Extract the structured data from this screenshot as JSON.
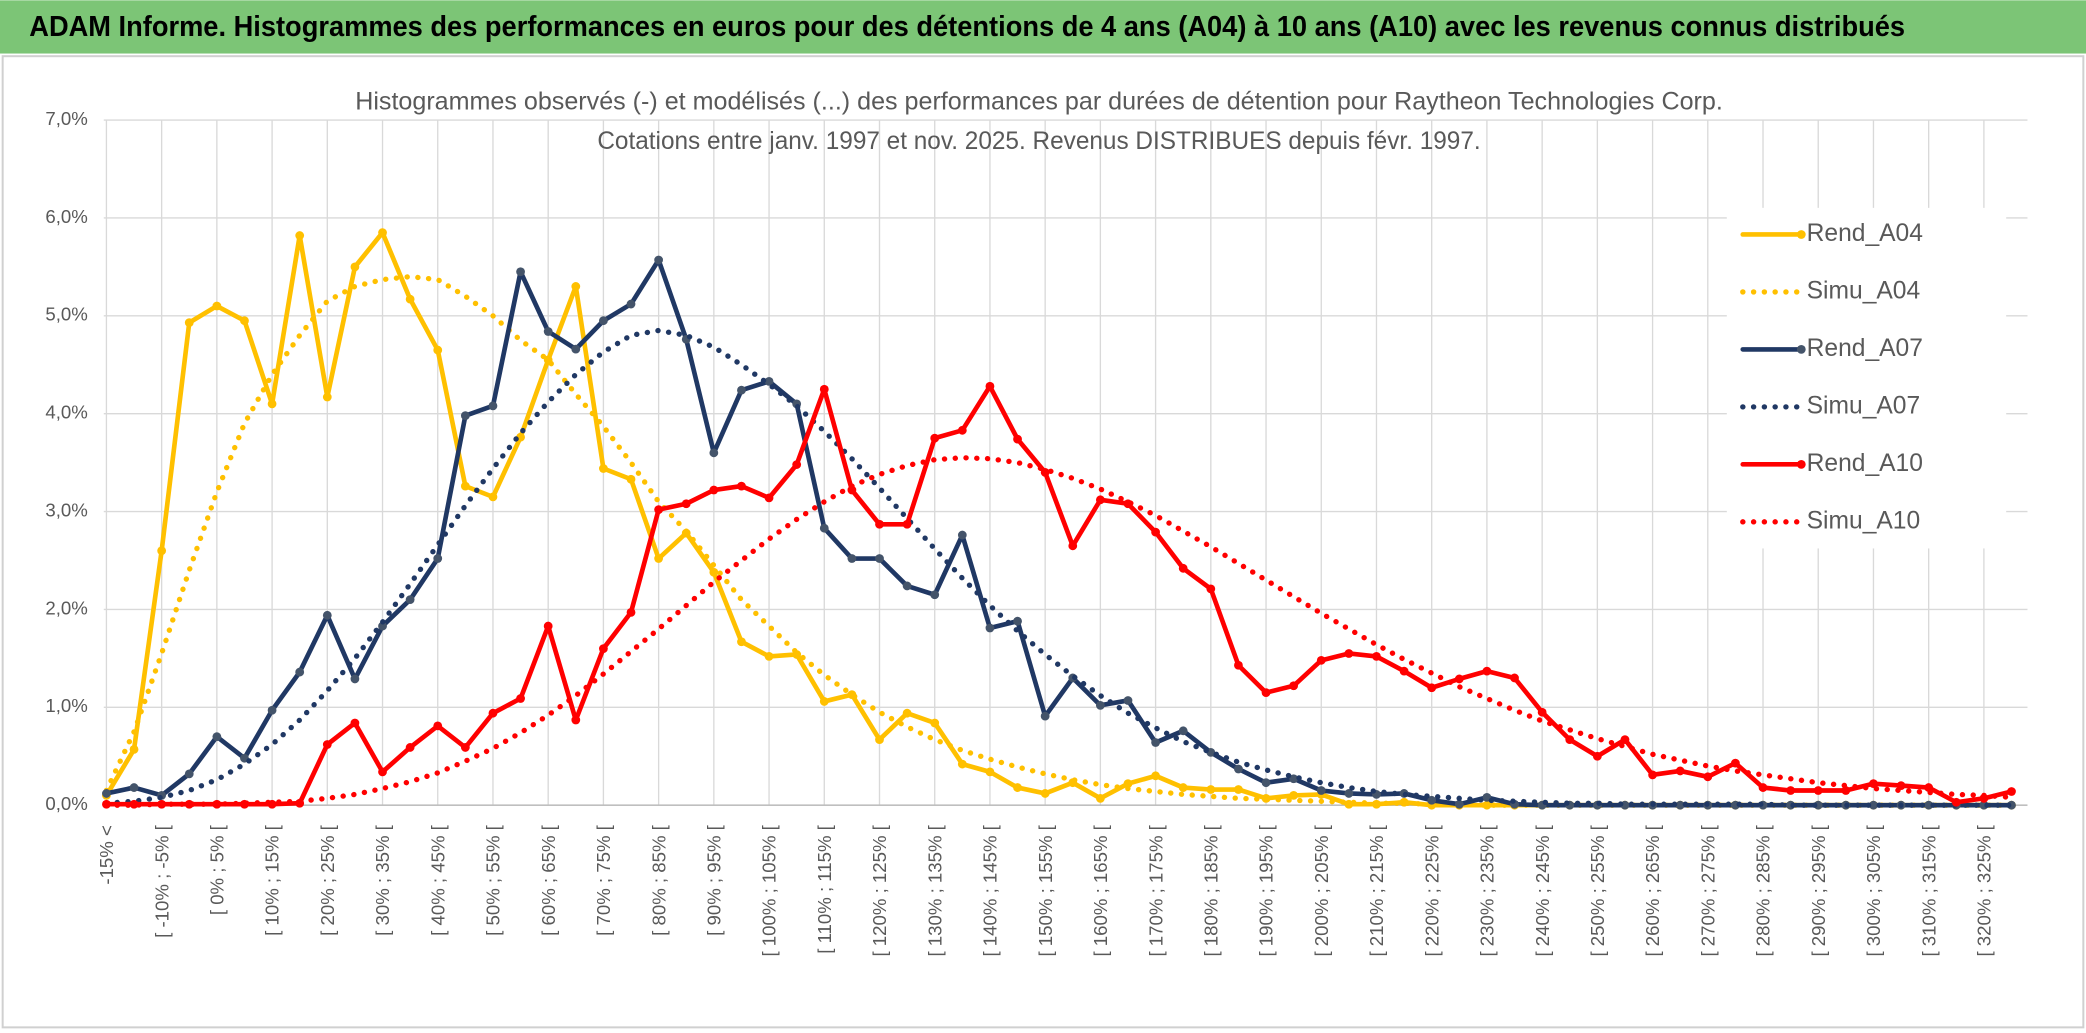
{
  "header": {
    "title": "ADAM Informe. Histogrammes des performances en euros pour des détentions de 4 ans (A04) à 10 ans (A10) avec les revenus connus distribués"
  },
  "chart_data": {
    "type": "line",
    "title": "Histogrammes observés (-) et modélisés (...) des performances par durées de détention pour Raytheon Technologies Corp.",
    "subtitle": "Cotations entre janv. 1997 et nov. 2025. Revenus DISTRIBUES depuis févr. 1997.",
    "categories": [
      "-15% <",
      null,
      "[ -10% ; -5% [",
      null,
      "[ 0% ; 5% [",
      null,
      "[ 10% ; 15% [",
      null,
      "[ 20% ; 25% [",
      null,
      "[ 30% ; 35% [",
      null,
      "[ 40% ; 45% [",
      null,
      "[ 50% ; 55% [",
      null,
      "[ 60% ; 65% [",
      null,
      "[ 70% ; 75% [",
      null,
      "[ 80% ; 85% [",
      null,
      "[ 90% ; 95% [",
      null,
      "[ 100% ; 105% [",
      null,
      "[ 110% ; 115% [",
      null,
      "[ 120% ; 125% [",
      null,
      "[ 130% ; 135% [",
      null,
      "[ 140% ; 145% [",
      null,
      "[ 150% ; 155% [",
      null,
      "[ 160% ; 165% [",
      null,
      "[ 170% ; 175% [",
      null,
      "[ 180% ; 185% [",
      null,
      "[ 190% ; 195% [",
      null,
      "[ 200% ; 205% [",
      null,
      "[ 210% ; 215% [",
      null,
      "[ 220% ; 225% [",
      null,
      "[ 230% ; 235% [",
      null,
      "[ 240% ; 245% [",
      null,
      "[ 250% ; 255% [",
      null,
      "[ 260% ; 265% [",
      null,
      "[ 270% ; 275% [",
      null,
      "[ 280% ; 285% [",
      null,
      "[ 290% ; 295% [",
      null,
      "[ 300% ; 305% [",
      null,
      "[ 310% ; 315% [",
      null,
      "[ 320% ; 325% [",
      null
    ],
    "ylim": [
      0,
      7
    ],
    "yticks": [
      {
        "value": 0,
        "label": "0,0%"
      },
      {
        "value": 1,
        "label": "1,0%"
      },
      {
        "value": 2,
        "label": "2,0%"
      },
      {
        "value": 3,
        "label": "3,0%"
      },
      {
        "value": 4,
        "label": "4,0%"
      },
      {
        "value": 5,
        "label": "5,0%"
      },
      {
        "value": 6,
        "label": "6,0%"
      },
      {
        "value": 7,
        "label": "7,0%"
      }
    ],
    "grid": true,
    "legend": "right",
    "series": [
      {
        "name": "Rend_A04",
        "color": "#ffc000",
        "style": "solid",
        "markers": true,
        "values": [
          0.1,
          0.57,
          2.6,
          4.93,
          5.1,
          4.95,
          4.1,
          5.82,
          4.17,
          5.5,
          5.85,
          5.17,
          4.65,
          3.26,
          3.15,
          3.76,
          4.55,
          5.3,
          3.44,
          3.33,
          2.52,
          2.78,
          2.38,
          1.67,
          1.52,
          1.54,
          1.06,
          1.13,
          0.67,
          0.94,
          0.84,
          0.42,
          0.34,
          0.18,
          0.12,
          0.23,
          0.07,
          0.22,
          0.3,
          0.18,
          0.16,
          0.16,
          0.07,
          0.1,
          0.11,
          0.01,
          0.01,
          0.03,
          0,
          0,
          0,
          0,
          0,
          0,
          0,
          0,
          0,
          0,
          0,
          0,
          0,
          0,
          0,
          0,
          0,
          0,
          0,
          0,
          0,
          0
        ]
      },
      {
        "name": "Simu_A04",
        "color": "#ffc000",
        "style": "dotted",
        "markers": false,
        "values": [
          0.15,
          0.75,
          1.55,
          2.4,
          3.2,
          3.9,
          4.4,
          4.8,
          5.15,
          5.3,
          5.37,
          5.4,
          5.37,
          5.2,
          5.0,
          4.75,
          4.55,
          4.2,
          3.87,
          3.5,
          3.1,
          2.8,
          2.45,
          2.1,
          1.83,
          1.56,
          1.33,
          1.13,
          0.95,
          0.8,
          0.67,
          0.56,
          0.47,
          0.39,
          0.32,
          0.26,
          0.21,
          0.17,
          0.14,
          0.11,
          0.09,
          0.07,
          0.06,
          0.05,
          0.04,
          0.03,
          0.02,
          0.02,
          0.01,
          0.01,
          0,
          0,
          0,
          0,
          0,
          0,
          0,
          0,
          0,
          0,
          0,
          0,
          0,
          0,
          0,
          0,
          0,
          0,
          0,
          0
        ]
      },
      {
        "name": "Rend_A07",
        "color": "#203864",
        "style": "solid",
        "markers": true,
        "values": [
          0.12,
          0.18,
          0.1,
          0.32,
          0.7,
          0.48,
          0.97,
          1.36,
          1.94,
          1.29,
          1.83,
          2.1,
          2.52,
          3.98,
          4.08,
          5.45,
          4.84,
          4.66,
          4.95,
          5.12,
          5.57,
          4.76,
          3.6,
          4.24,
          4.33,
          4.1,
          2.83,
          2.52,
          2.52,
          2.24,
          2.15,
          2.76,
          1.81,
          1.88,
          0.91,
          1.3,
          1.02,
          1.07,
          0.64,
          0.76,
          0.54,
          0.37,
          0.23,
          0.27,
          0.15,
          0.12,
          0.11,
          0.12,
          0.05,
          0.01,
          0.08,
          0.01,
          0,
          0,
          0,
          0,
          0,
          0,
          0,
          0,
          0,
          0,
          0,
          0,
          0,
          0,
          0,
          0,
          0,
          0
        ]
      },
      {
        "name": "Simu_A07",
        "color": "#203864",
        "style": "dotted",
        "markers": false,
        "values": [
          0.02,
          0.04,
          0.08,
          0.15,
          0.26,
          0.42,
          0.62,
          0.87,
          1.17,
          1.5,
          1.87,
          2.26,
          2.66,
          3.06,
          3.44,
          3.8,
          4.12,
          4.4,
          4.63,
          4.8,
          4.85,
          4.8,
          4.68,
          4.5,
          4.3,
          4.08,
          3.82,
          3.54,
          3.24,
          2.93,
          2.62,
          2.32,
          2.04,
          1.78,
          1.54,
          1.32,
          1.12,
          0.94,
          0.79,
          0.65,
          0.54,
          0.44,
          0.36,
          0.29,
          0.23,
          0.18,
          0.14,
          0.11,
          0.09,
          0.07,
          0.05,
          0.04,
          0.03,
          0.02,
          0.02,
          0.01,
          0.01,
          0.01,
          0.01,
          0.01,
          0.01,
          0,
          0,
          0,
          0,
          0,
          0,
          0,
          0,
          0
        ]
      },
      {
        "name": "Rend_A10",
        "color": "#ff0000",
        "style": "solid",
        "markers": true,
        "values": [
          0.01,
          0.01,
          0.01,
          0.01,
          0.01,
          0.01,
          0.01,
          0.02,
          0.62,
          0.84,
          0.34,
          0.59,
          0.81,
          0.59,
          0.94,
          1.09,
          1.83,
          0.87,
          1.6,
          1.97,
          3.02,
          3.08,
          3.22,
          3.26,
          3.14,
          3.48,
          4.25,
          3.22,
          2.87,
          2.87,
          3.75,
          3.83,
          4.28,
          3.74,
          3.4,
          2.65,
          3.12,
          3.08,
          2.79,
          2.42,
          2.21,
          1.43,
          1.15,
          1.22,
          1.48,
          1.55,
          1.52,
          1.37,
          1.2,
          1.29,
          1.37,
          1.3,
          0.95,
          0.67,
          0.5,
          0.67,
          0.31,
          0.35,
          0.29,
          0.43,
          0.18,
          0.15,
          0.15,
          0.15,
          0.22,
          0.2,
          0.18,
          0.03,
          0.07,
          0.14
        ]
      },
      {
        "name": "Simu_A10",
        "color": "#ff0000",
        "style": "dotted",
        "markers": false,
        "values": [
          0,
          0,
          0.01,
          0.01,
          0.01,
          0.02,
          0.03,
          0.04,
          0.07,
          0.11,
          0.17,
          0.24,
          0.33,
          0.45,
          0.58,
          0.74,
          0.92,
          1.12,
          1.34,
          1.57,
          1.8,
          2.04,
          2.28,
          2.5,
          2.72,
          2.92,
          3.1,
          3.26,
          3.38,
          3.47,
          3.53,
          3.55,
          3.54,
          3.5,
          3.43,
          3.34,
          3.23,
          3.1,
          2.96,
          2.8,
          2.64,
          2.47,
          2.3,
          2.13,
          1.96,
          1.8,
          1.64,
          1.49,
          1.35,
          1.21,
          1.09,
          0.97,
          0.86,
          0.77,
          0.68,
          0.6,
          0.52,
          0.46,
          0.4,
          0.35,
          0.31,
          0.27,
          0.23,
          0.2,
          0.17,
          0.15,
          0.13,
          0.11,
          0.1,
          0.08
        ]
      }
    ]
  }
}
